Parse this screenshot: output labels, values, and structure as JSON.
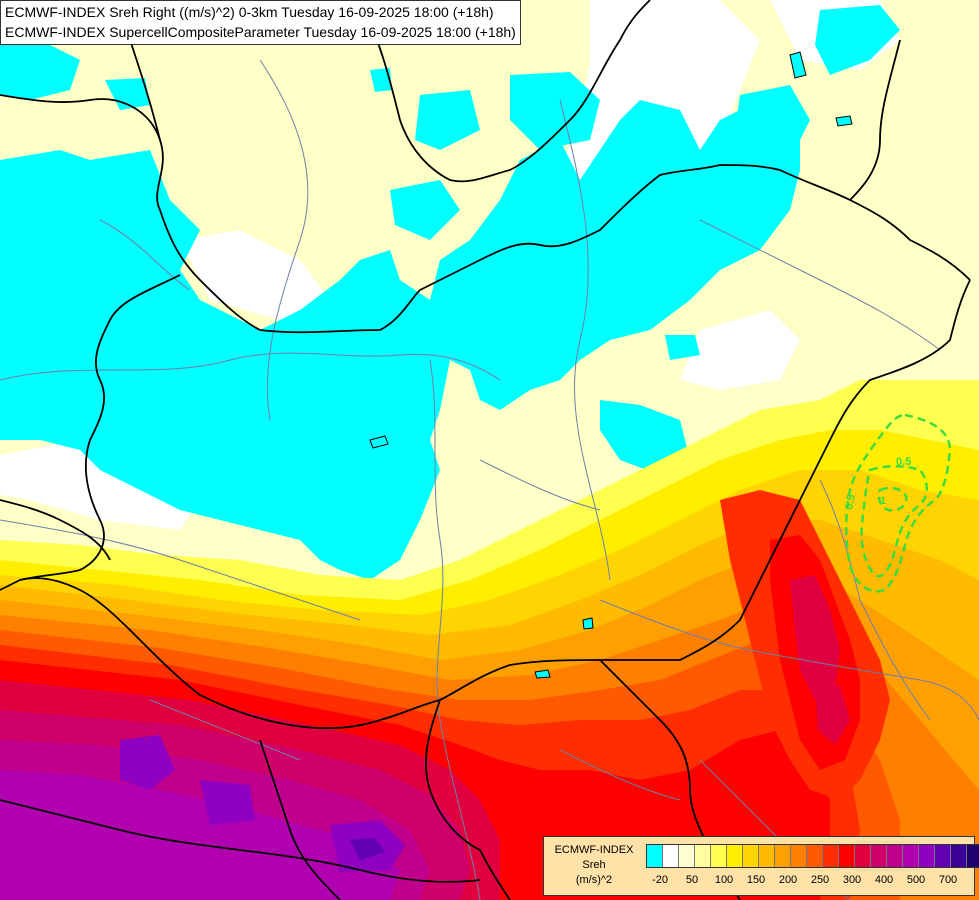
{
  "title": {
    "line1": "ECMWF-INDEX Sreh Right ((m/s)^2) 0-3km Tuesday 16-09-2025 18:00 (+18h)",
    "line2": "ECMWF-INDEX SupercellCompositeParameter Tuesday 16-09-2025 18:00 (+18h)"
  },
  "legend": {
    "source": "ECMWF-INDEX",
    "variable": "Sreh",
    "unit": "(m/s)^2",
    "colors": [
      "#00ffff",
      "#ffffff",
      "#ffffd2",
      "#ffffa0",
      "#ffff50",
      "#ffee00",
      "#ffd400",
      "#ffbb00",
      "#ffa000",
      "#ff8000",
      "#ff5a00",
      "#ff2d00",
      "#ff0000",
      "#e00040",
      "#d0006a",
      "#c0008c",
      "#b000b0",
      "#9000c0",
      "#6000b0",
      "#3a0098",
      "#200070"
    ],
    "tick_labels": [
      "-20",
      "50",
      "100",
      "150",
      "200",
      "250",
      "300",
      "400",
      "500",
      "700"
    ]
  },
  "contours": {
    "scp_labels": [
      "0.5",
      "0.5",
      "1"
    ],
    "scp_color": "#3ddc3d"
  }
}
